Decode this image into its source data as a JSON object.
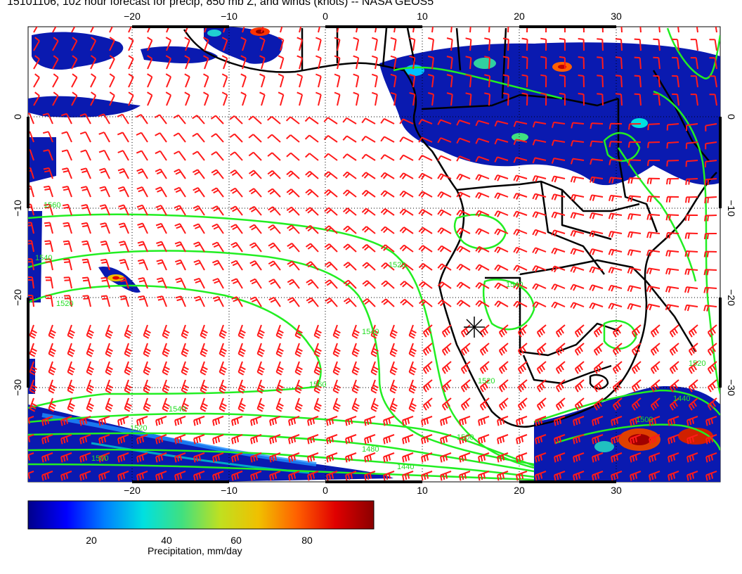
{
  "title": "15101106, 102 hour forecast for precip, 850 mb Z, and winds (knots) -- NASA GEOS5",
  "colors": {
    "barb": "#ff1a1a",
    "contour": "#22ee22",
    "coast": "#000000",
    "grid": "#000000"
  },
  "icons": [
    "wind-barb-icon",
    "location-marker-icon"
  ],
  "axes": {
    "lon_ticks": [
      "−20",
      "−10",
      "0",
      "10",
      "20",
      "30"
    ],
    "lat_ticks": [
      "0",
      "−10",
      "−20",
      "−30"
    ]
  },
  "contour_labels": [
    "1540",
    "1560",
    "1520",
    "1520",
    "1540",
    "1560",
    "1540",
    "1520",
    "1500",
    "1480",
    "1500",
    "1440",
    "1520",
    "1540",
    "1500",
    "1520",
    "1440"
  ],
  "colorbar": {
    "ticks": [
      "20",
      "40",
      "60",
      "80"
    ],
    "label": "Precipitation, mm/day",
    "range": [
      0,
      100
    ],
    "colors": [
      "#00008b",
      "#0000ff",
      "#0080ff",
      "#00e0e0",
      "#40e080",
      "#c0e020",
      "#f0c000",
      "#ff6000",
      "#e00000",
      "#8b0000"
    ]
  }
}
